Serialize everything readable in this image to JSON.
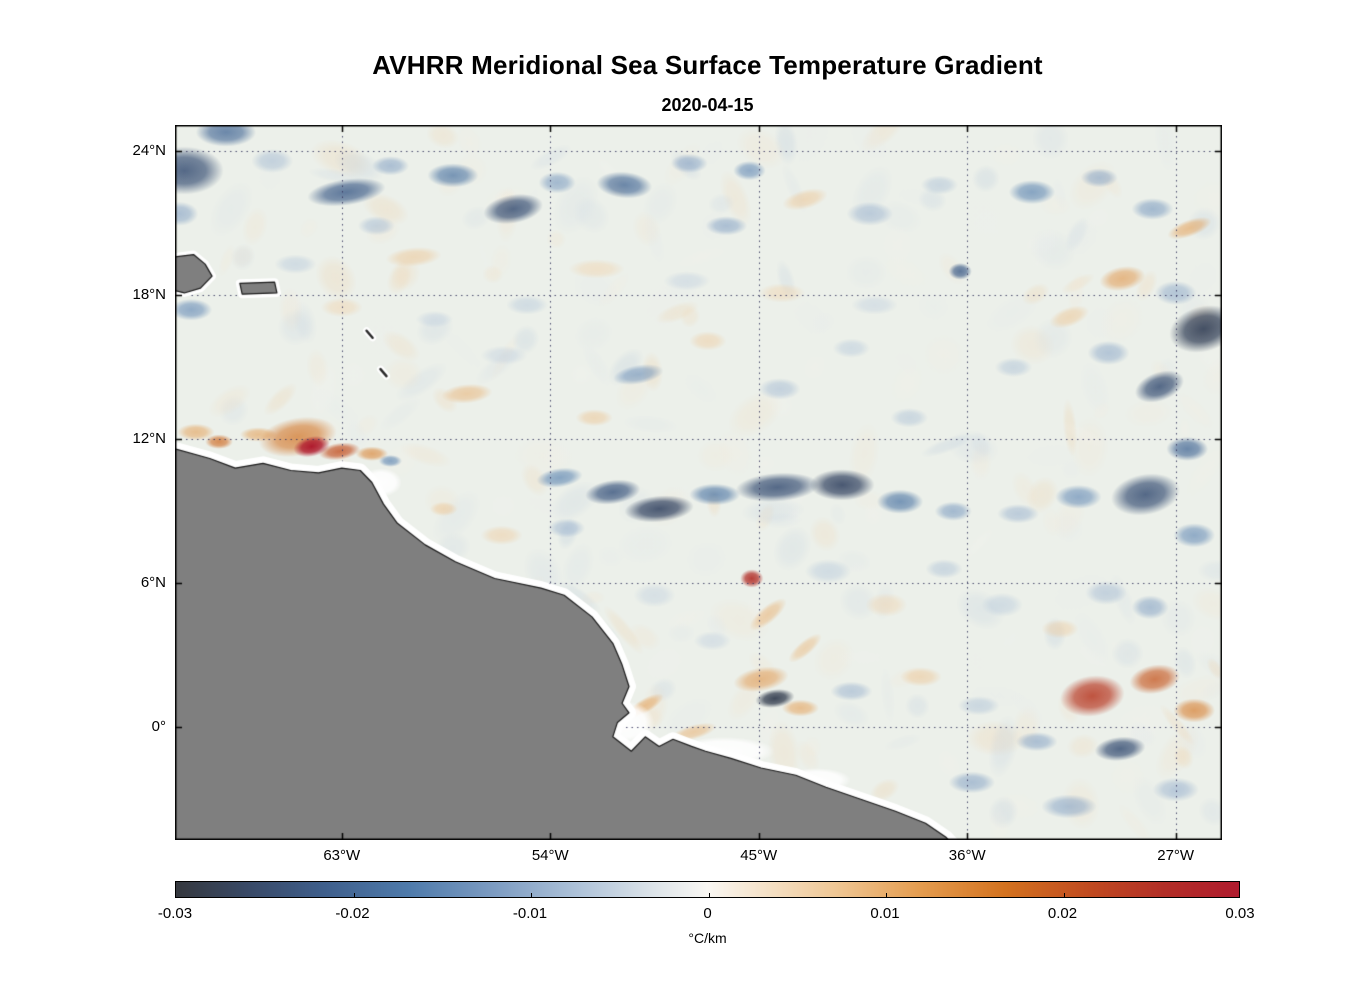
{
  "chart_data": {
    "type": "heatmap",
    "title": "AVHRR Meridional Sea Surface Temperature Gradient",
    "subtitle": "2020-04-15",
    "colorbar": {
      "label": "°C/km",
      "ticks": [
        "-0.03",
        "-0.02",
        "-0.01",
        "0",
        "0.01",
        "0.02",
        "0.03"
      ],
      "min": -0.03,
      "max": 0.03,
      "colormap_stops": [
        [
          0.0,
          "#35383e"
        ],
        [
          0.07,
          "#394a68"
        ],
        [
          0.14,
          "#3f5f8c"
        ],
        [
          0.22,
          "#4f7bab"
        ],
        [
          0.3,
          "#7d9cc2"
        ],
        [
          0.38,
          "#afc3d9"
        ],
        [
          0.45,
          "#dde4e9"
        ],
        [
          0.5,
          "#f9f7f3"
        ],
        [
          0.55,
          "#f5e3cb"
        ],
        [
          0.62,
          "#efc795"
        ],
        [
          0.7,
          "#e49c4f"
        ],
        [
          0.78,
          "#d3721f"
        ],
        [
          0.86,
          "#c04a20"
        ],
        [
          0.93,
          "#b22e27"
        ],
        [
          1.0,
          "#b01b2e"
        ]
      ]
    },
    "axes": {
      "lon_min": -70.2,
      "lon_max": -25.0,
      "lat_min": -4.7,
      "lat_max": 25.1,
      "grid": "dotted",
      "lon_ticks": [
        {
          "value": -63,
          "label": "63°W"
        },
        {
          "value": -54,
          "label": "54°W"
        },
        {
          "value": -45,
          "label": "45°W"
        },
        {
          "value": -36,
          "label": "36°W"
        },
        {
          "value": -27,
          "label": "27°W"
        }
      ],
      "lat_ticks": [
        {
          "value": 24,
          "label": "24°N"
        },
        {
          "value": 18,
          "label": "18°N"
        },
        {
          "value": 12,
          "label": "12°N"
        },
        {
          "value": 6,
          "label": "6°N"
        },
        {
          "value": 0,
          "label": "0°"
        }
      ]
    },
    "ocean_color": "#ecf0ea",
    "land_color": "#7f7f7f",
    "coast_halo_color": "#ffffff",
    "land_polygons": {
      "south_america": [
        [
          -70.2,
          11.6
        ],
        [
          -68.7,
          11.2
        ],
        [
          -67.6,
          10.8
        ],
        [
          -66.4,
          11.0
        ],
        [
          -65.2,
          10.7
        ],
        [
          -64.0,
          10.6
        ],
        [
          -63.0,
          10.8
        ],
        [
          -62.2,
          10.7
        ],
        [
          -61.7,
          10.2
        ],
        [
          -61.2,
          9.3
        ],
        [
          -60.6,
          8.5
        ],
        [
          -59.4,
          7.6
        ],
        [
          -58.1,
          6.9
        ],
        [
          -56.4,
          6.2
        ],
        [
          -54.4,
          5.8
        ],
        [
          -53.4,
          5.5
        ],
        [
          -52.2,
          4.6
        ],
        [
          -51.3,
          3.5
        ],
        [
          -50.9,
          2.6
        ],
        [
          -50.6,
          1.7
        ],
        [
          -50.9,
          1.0
        ],
        [
          -50.6,
          0.6
        ],
        [
          -51.1,
          0.2
        ],
        [
          -51.3,
          -0.4
        ],
        [
          -50.5,
          -1.0
        ],
        [
          -49.9,
          -0.4
        ],
        [
          -49.3,
          -0.8
        ],
        [
          -48.7,
          -0.5
        ],
        [
          -47.9,
          -0.8
        ],
        [
          -47.3,
          -1.0
        ],
        [
          -46.2,
          -1.3
        ],
        [
          -44.9,
          -1.7
        ],
        [
          -43.4,
          -2.0
        ],
        [
          -42.1,
          -2.5
        ],
        [
          -40.6,
          -3.0
        ],
        [
          -39.1,
          -3.5
        ],
        [
          -37.8,
          -4.0
        ],
        [
          -36.9,
          -4.6
        ],
        [
          -36.6,
          -4.9
        ],
        [
          -70.2,
          -4.9
        ]
      ],
      "hispaniola": [
        [
          -70.2,
          19.6
        ],
        [
          -69.4,
          19.7
        ],
        [
          -68.9,
          19.3
        ],
        [
          -68.6,
          18.8
        ],
        [
          -69.1,
          18.3
        ],
        [
          -69.8,
          18.1
        ],
        [
          -70.2,
          18.2
        ]
      ],
      "puerto_rico": [
        [
          -67.4,
          18.5
        ],
        [
          -65.9,
          18.55
        ],
        [
          -65.8,
          18.1
        ],
        [
          -67.3,
          18.05
        ]
      ]
    },
    "island_marks": [
      [
        -61.8,
        16.4
      ],
      [
        -61.2,
        14.8
      ]
    ],
    "cloud_mask_white": [
      [
        -50.8,
        0.2,
        1.3,
        0.9
      ],
      [
        -46.5,
        -1.0,
        2.2,
        0.6
      ],
      [
        -42.5,
        -2.2,
        1.5,
        0.5
      ],
      [
        -61.3,
        10.2,
        0.9,
        0.6
      ],
      [
        -54.5,
        5.3,
        1.0,
        0.5
      ]
    ],
    "features": [
      [
        -69.8,
        23.2,
        1.7,
        1.0,
        -0.024,
        0
      ],
      [
        -68.0,
        24.8,
        1.3,
        0.6,
        -0.02,
        0
      ],
      [
        -70.0,
        21.4,
        0.8,
        0.5,
        -0.012,
        0
      ],
      [
        -66.0,
        23.6,
        0.9,
        0.5,
        -0.009,
        0
      ],
      [
        -62.8,
        22.3,
        1.7,
        0.55,
        -0.022,
        -8
      ],
      [
        -60.9,
        23.4,
        0.8,
        0.4,
        -0.012,
        0
      ],
      [
        -58.2,
        23.0,
        1.1,
        0.5,
        -0.018,
        0
      ],
      [
        -55.6,
        21.6,
        1.3,
        0.6,
        -0.024,
        -10
      ],
      [
        -53.7,
        22.7,
        0.8,
        0.45,
        -0.013,
        0
      ],
      [
        -50.8,
        22.6,
        1.2,
        0.55,
        -0.02,
        5
      ],
      [
        -48.0,
        23.5,
        0.8,
        0.4,
        -0.012,
        0
      ],
      [
        -45.4,
        23.2,
        0.7,
        0.4,
        -0.015,
        0
      ],
      [
        -43.0,
        22.0,
        1.0,
        0.4,
        0.008,
        -15
      ],
      [
        -40.2,
        21.4,
        1.0,
        0.5,
        -0.01,
        0
      ],
      [
        -37.2,
        22.6,
        0.8,
        0.4,
        -0.008,
        0
      ],
      [
        -33.2,
        22.3,
        1.0,
        0.5,
        -0.016,
        0
      ],
      [
        -30.3,
        22.9,
        0.8,
        0.4,
        -0.012,
        0
      ],
      [
        -28.0,
        21.6,
        0.9,
        0.45,
        -0.013,
        0
      ],
      [
        -26.4,
        20.8,
        1.0,
        0.35,
        0.012,
        -20
      ],
      [
        -29.3,
        18.7,
        1.0,
        0.5,
        0.013,
        -10
      ],
      [
        -27.0,
        18.1,
        0.9,
        0.5,
        -0.011,
        0
      ],
      [
        -25.8,
        16.6,
        1.5,
        0.95,
        -0.027,
        -15
      ],
      [
        -27.7,
        14.2,
        1.1,
        0.6,
        -0.024,
        -20
      ],
      [
        -29.9,
        15.6,
        0.9,
        0.5,
        -0.011,
        0
      ],
      [
        -31.6,
        17.1,
        0.9,
        0.4,
        0.008,
        -20
      ],
      [
        -36.3,
        19.0,
        0.5,
        0.35,
        -0.022,
        0
      ],
      [
        -34.0,
        15.0,
        0.8,
        0.4,
        -0.008,
        0
      ],
      [
        -59.9,
        19.6,
        1.2,
        0.4,
        0.008,
        -5
      ],
      [
        -55.0,
        17.6,
        0.9,
        0.4,
        -0.007,
        0
      ],
      [
        -50.2,
        14.7,
        1.1,
        0.4,
        -0.014,
        -10
      ],
      [
        -52.1,
        12.9,
        0.8,
        0.35,
        0.008,
        0
      ],
      [
        -57.6,
        13.9,
        1.1,
        0.4,
        0.01,
        -5
      ],
      [
        -47.2,
        16.1,
        0.8,
        0.4,
        0.007,
        0
      ],
      [
        -44.1,
        14.1,
        0.9,
        0.45,
        -0.009,
        0
      ],
      [
        -41.0,
        15.8,
        0.8,
        0.4,
        -0.007,
        0
      ],
      [
        -38.5,
        12.9,
        0.8,
        0.4,
        -0.008,
        0
      ],
      [
        -64.9,
        12.1,
        1.7,
        0.8,
        0.017,
        -10
      ],
      [
        -64.3,
        11.7,
        0.8,
        0.42,
        0.03,
        -12
      ],
      [
        -63.1,
        11.5,
        0.9,
        0.35,
        0.021,
        -8
      ],
      [
        -66.6,
        12.2,
        0.8,
        0.3,
        0.012,
        0
      ],
      [
        -61.7,
        11.4,
        0.7,
        0.3,
        0.015,
        0
      ],
      [
        -60.9,
        11.1,
        0.5,
        0.25,
        -0.016,
        0
      ],
      [
        -69.3,
        12.3,
        0.8,
        0.35,
        0.012,
        0
      ],
      [
        -68.3,
        11.9,
        0.6,
        0.3,
        0.018,
        0
      ],
      [
        -69.5,
        17.4,
        0.9,
        0.45,
        -0.015,
        0
      ],
      [
        -53.6,
        10.4,
        1.0,
        0.4,
        -0.016,
        -8
      ],
      [
        -51.3,
        9.8,
        1.2,
        0.5,
        -0.023,
        -8
      ],
      [
        -49.3,
        9.1,
        1.5,
        0.55,
        -0.026,
        -5
      ],
      [
        -46.9,
        9.7,
        1.1,
        0.45,
        -0.018,
        0
      ],
      [
        -44.2,
        10.0,
        1.8,
        0.6,
        -0.024,
        -4
      ],
      [
        -41.4,
        10.1,
        1.4,
        0.65,
        -0.026,
        0
      ],
      [
        -38.9,
        9.4,
        1.0,
        0.5,
        -0.018,
        0
      ],
      [
        -36.6,
        9.0,
        0.8,
        0.4,
        -0.013,
        0
      ],
      [
        -33.8,
        8.9,
        0.9,
        0.4,
        -0.01,
        0
      ],
      [
        -31.2,
        9.6,
        1.0,
        0.5,
        -0.015,
        0
      ],
      [
        -28.3,
        9.7,
        1.5,
        0.85,
        -0.024,
        -10
      ],
      [
        -26.2,
        8.0,
        0.9,
        0.5,
        -0.015,
        0
      ],
      [
        -26.5,
        11.6,
        0.9,
        0.5,
        -0.02,
        0
      ],
      [
        -53.3,
        8.3,
        0.8,
        0.4,
        -0.01,
        0
      ],
      [
        -56.5,
        5.7,
        1.2,
        0.35,
        0.012,
        -22
      ],
      [
        -53.8,
        4.7,
        1.0,
        0.3,
        0.012,
        -35
      ],
      [
        -51.9,
        2.9,
        0.8,
        0.3,
        0.012,
        -55
      ],
      [
        -49.9,
        0.9,
        0.9,
        0.3,
        0.012,
        -30
      ],
      [
        -47.8,
        -0.2,
        1.0,
        0.3,
        0.01,
        -15
      ],
      [
        -45.3,
        6.2,
        0.5,
        0.38,
        0.026,
        0
      ],
      [
        -44.6,
        4.7,
        1.0,
        0.35,
        0.01,
        -40
      ],
      [
        -43.0,
        3.3,
        0.9,
        0.3,
        0.009,
        -40
      ],
      [
        -44.3,
        1.2,
        0.85,
        0.38,
        -0.028,
        -8
      ],
      [
        -44.9,
        2.0,
        1.2,
        0.5,
        0.013,
        -10
      ],
      [
        -43.2,
        0.8,
        0.8,
        0.35,
        0.012,
        0
      ],
      [
        -41.0,
        1.5,
        0.9,
        0.4,
        -0.01,
        0
      ],
      [
        -38.0,
        2.1,
        0.9,
        0.4,
        0.008,
        0
      ],
      [
        -35.5,
        0.9,
        0.9,
        0.4,
        -0.008,
        0
      ],
      [
        -30.6,
        1.3,
        1.4,
        0.85,
        0.024,
        -8
      ],
      [
        -27.9,
        2.0,
        1.1,
        0.6,
        0.02,
        -10
      ],
      [
        -26.2,
        0.7,
        0.9,
        0.5,
        0.016,
        0
      ],
      [
        -29.4,
        -0.9,
        1.1,
        0.5,
        -0.024,
        -6
      ],
      [
        -33.0,
        -0.6,
        0.9,
        0.4,
        -0.012,
        0
      ],
      [
        -27.0,
        -2.6,
        1.0,
        0.5,
        -0.01,
        0
      ],
      [
        -31.6,
        -3.3,
        1.2,
        0.5,
        -0.012,
        0
      ],
      [
        -35.8,
        -2.3,
        1.0,
        0.45,
        -0.012,
        0
      ],
      [
        -56.1,
        8.0,
        0.9,
        0.4,
        0.007,
        0
      ],
      [
        -58.6,
        9.1,
        0.6,
        0.3,
        0.008,
        0
      ],
      [
        -49.5,
        5.5,
        0.9,
        0.5,
        -0.006,
        0
      ],
      [
        -47.0,
        3.6,
        0.8,
        0.4,
        -0.006,
        0
      ],
      [
        -42.0,
        6.5,
        1.0,
        0.5,
        -0.007,
        0
      ],
      [
        -39.5,
        5.1,
        0.9,
        0.5,
        0.006,
        0
      ],
      [
        -37.0,
        6.6,
        0.8,
        0.4,
        -0.008,
        0
      ],
      [
        -34.5,
        5.1,
        0.9,
        0.5,
        -0.007,
        0
      ],
      [
        -32.0,
        4.1,
        0.8,
        0.4,
        0.007,
        0
      ],
      [
        -30.0,
        5.6,
        0.9,
        0.5,
        -0.009,
        0
      ],
      [
        -28.1,
        5.0,
        0.8,
        0.5,
        -0.012,
        0
      ],
      [
        -52.0,
        19.1,
        1.2,
        0.4,
        0.006,
        0
      ],
      [
        -48.1,
        18.6,
        1.0,
        0.4,
        -0.006,
        0
      ],
      [
        -44.0,
        18.1,
        1.0,
        0.4,
        0.006,
        0
      ],
      [
        -40.0,
        17.6,
        1.0,
        0.4,
        -0.006,
        0
      ],
      [
        -56.0,
        15.5,
        1.0,
        0.4,
        -0.006,
        0
      ],
      [
        -46.4,
        20.9,
        0.9,
        0.4,
        -0.012,
        0
      ],
      [
        -61.5,
        20.9,
        0.8,
        0.4,
        -0.009,
        0
      ],
      [
        -65.0,
        19.3,
        0.9,
        0.4,
        -0.007,
        0
      ],
      [
        -63.0,
        17.5,
        0.9,
        0.4,
        0.006,
        0
      ],
      [
        -59.0,
        17.0,
        0.8,
        0.35,
        -0.006,
        0
      ]
    ]
  }
}
